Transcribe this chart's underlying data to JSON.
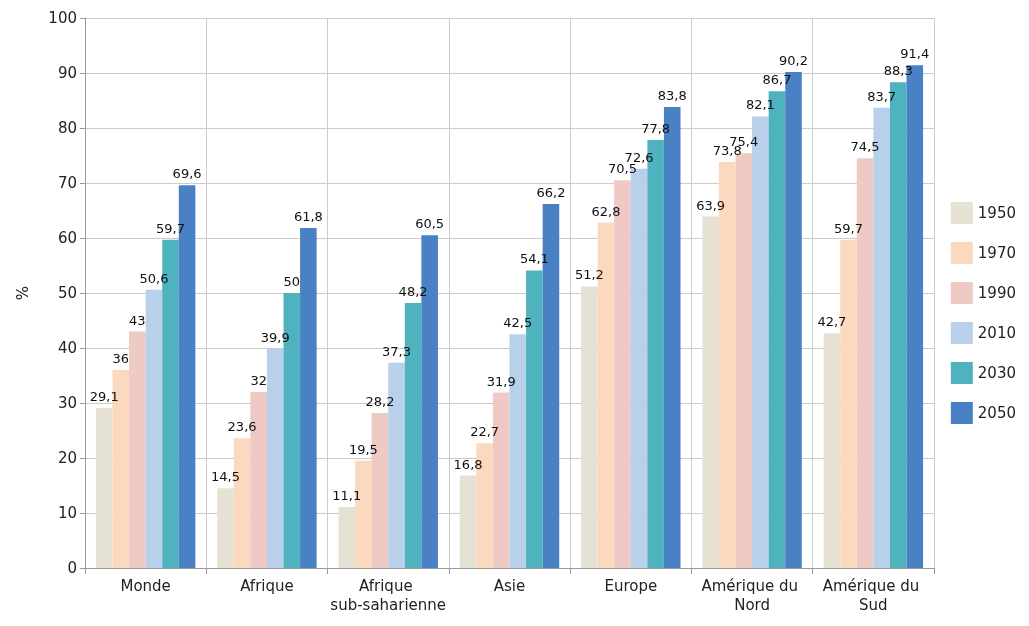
{
  "chart_data": {
    "type": "bar",
    "ylabel": "%",
    "categories": [
      "Monde",
      "Afrique",
      "Afrique sub-saharienne",
      "Asie",
      "Europe",
      "Amérique du Nord",
      "Amérique du Sud"
    ],
    "series": [
      {
        "name": "1950",
        "color": "#e6e2d3",
        "values": [
          29.1,
          14.5,
          11.1,
          16.8,
          51.2,
          63.9,
          42.7
        ],
        "value_labels": [
          "29,1",
          "14,5",
          "11,1",
          "16,8",
          "51,2",
          "63,9",
          "42,7"
        ]
      },
      {
        "name": "1970",
        "color": "#fbd9bf",
        "values": [
          36,
          23.6,
          19.5,
          22.7,
          62.8,
          73.8,
          59.7
        ],
        "value_labels": [
          "36",
          "23,6",
          "19,5",
          "22,7",
          "62,8",
          "73,8",
          "59,7"
        ]
      },
      {
        "name": "1990",
        "color": "#efc9c3",
        "values": [
          43,
          32,
          28.2,
          31.9,
          70.5,
          75.4,
          74.5
        ],
        "value_labels": [
          "43",
          "32",
          "28,2",
          "31,9",
          "70,5",
          "75,4",
          "74,5"
        ]
      },
      {
        "name": "2010",
        "color": "#b9d0ea",
        "values": [
          50.6,
          39.9,
          37.3,
          42.5,
          72.6,
          82.1,
          83.7
        ],
        "value_labels": [
          "50,6",
          "39,9",
          "37,3",
          "42,5",
          "72,6",
          "82,1",
          "83,7"
        ]
      },
      {
        "name": "2030",
        "color": "#4fb3bf",
        "values": [
          59.7,
          50,
          48.2,
          54.1,
          77.8,
          86.7,
          88.3
        ],
        "value_labels": [
          "59,7",
          "50",
          "48,2",
          "54,1",
          "77,8",
          "86,7",
          "88,3"
        ]
      },
      {
        "name": "2050",
        "color": "#4a80c4",
        "values": [
          69.6,
          61.8,
          60.5,
          66.2,
          83.8,
          90.2,
          91.4
        ],
        "value_labels": [
          "69,6",
          "61,8",
          "60,5",
          "66,2",
          "83,8",
          "90,2",
          "91,4"
        ]
      }
    ],
    "ylim": [
      0,
      100
    ],
    "yticks": [
      0,
      10,
      20,
      30,
      40,
      50,
      60,
      70,
      80,
      90,
      100
    ],
    "grid": true,
    "legend": "right"
  }
}
